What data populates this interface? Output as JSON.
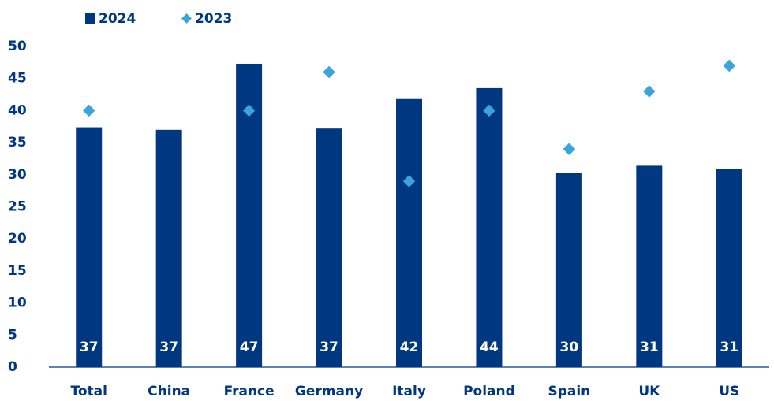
{
  "chart_data": {
    "type": "bar",
    "categories": [
      "Total",
      "China",
      "France",
      "Germany",
      "Italy",
      "Poland",
      "Spain",
      "UK",
      "US"
    ],
    "series": [
      {
        "name": "2024",
        "color": "#003781",
        "marker": "bar",
        "values": [
          37.4,
          37.0,
          47.3,
          37.2,
          41.8,
          43.5,
          30.3,
          31.4,
          30.9
        ],
        "value_labels": [
          "37",
          "37",
          "47",
          "37",
          "42",
          "44",
          "30",
          "31",
          "31"
        ]
      },
      {
        "name": "2023",
        "color": "#3aa5dc",
        "marker": "diamond",
        "values": [
          40,
          null,
          40,
          46,
          29,
          40,
          34,
          43,
          47
        ]
      }
    ],
    "ylim": [
      0,
      50
    ],
    "yticks": [
      0,
      5,
      10,
      15,
      20,
      25,
      30,
      35,
      40,
      45,
      50
    ]
  }
}
